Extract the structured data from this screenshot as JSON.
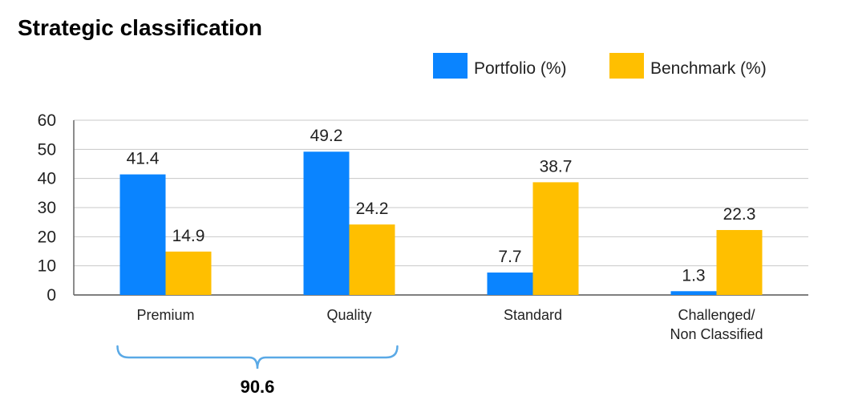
{
  "chart_data": {
    "type": "bar",
    "title": "Strategic classification",
    "categories": [
      "Premium",
      "Quality",
      "Standard",
      "Challenged/\nNon Classified"
    ],
    "series": [
      {
        "name": "Portfolio (%)",
        "color": "#0a84ff",
        "values": [
          41.4,
          49.2,
          7.7,
          1.3
        ]
      },
      {
        "name": "Benchmark (%)",
        "color": "#ffbf00",
        "values": [
          14.9,
          24.2,
          38.7,
          22.3
        ]
      }
    ],
    "yticks": [
      0,
      10,
      20,
      30,
      40,
      50,
      60
    ],
    "ylim": [
      0,
      60
    ],
    "grid": true,
    "legend": "top-right",
    "annotation": {
      "label": "90.6",
      "spans": [
        "Premium",
        "Quality"
      ],
      "color": "#5aa9e6"
    }
  }
}
